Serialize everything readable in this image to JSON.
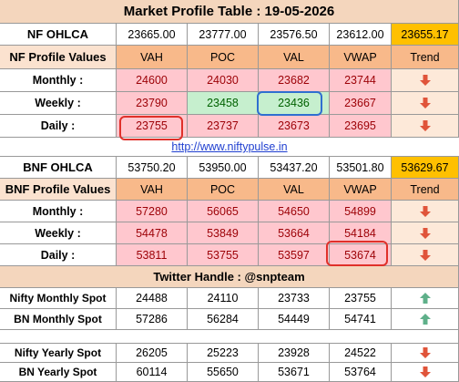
{
  "title": "Market Profile Table : 19-05-2026",
  "nf": {
    "ohlca_label": "NF OHLCA",
    "ohlca": [
      "23665.00",
      "23777.00",
      "23576.50",
      "23612.00",
      "23655.17"
    ],
    "header": [
      "NF Profile Values",
      "VAH",
      "POC",
      "VAL",
      "VWAP",
      "Trend"
    ],
    "rows": [
      {
        "label": "Monthly :",
        "values": [
          "24600",
          "24030",
          "23682",
          "23744"
        ]
      },
      {
        "label": "Weekly :",
        "values": [
          "23790",
          "23458",
          "23436",
          "23667"
        ]
      },
      {
        "label": "Daily :",
        "values": [
          "23755",
          "23737",
          "23673",
          "23695"
        ]
      }
    ]
  },
  "url": "http://www.niftypulse.in",
  "bnf": {
    "ohlca_label": "BNF OHLCA",
    "ohlca": [
      "53750.20",
      "53950.00",
      "53437.20",
      "53501.80",
      "53629.67"
    ],
    "header": [
      "BNF Profile Values",
      "VAH",
      "POC",
      "VAL",
      "VWAP",
      "Trend"
    ],
    "rows": [
      {
        "label": "Monthly :",
        "values": [
          "57280",
          "56065",
          "54650",
          "54899"
        ]
      },
      {
        "label": "Weekly :",
        "values": [
          "54478",
          "53849",
          "53664",
          "54184"
        ]
      },
      {
        "label": "Daily :",
        "values": [
          "53811",
          "53755",
          "53597",
          "53674"
        ]
      }
    ]
  },
  "twitter": "Twitter Handle : @snpteam",
  "spot": [
    {
      "label": "Nifty Monthly Spot",
      "values": [
        "24488",
        "24110",
        "23733",
        "23755"
      ]
    },
    {
      "label": "BN Monthly Spot",
      "values": [
        "57286",
        "56284",
        "54449",
        "54741"
      ]
    },
    {
      "label": "Nifty Yearly Spot",
      "values": [
        "26205",
        "25223",
        "23928",
        "24522"
      ]
    },
    {
      "label": "BN Yearly Spot",
      "values": [
        "60114",
        "55650",
        "53671",
        "53764"
      ]
    }
  ]
}
